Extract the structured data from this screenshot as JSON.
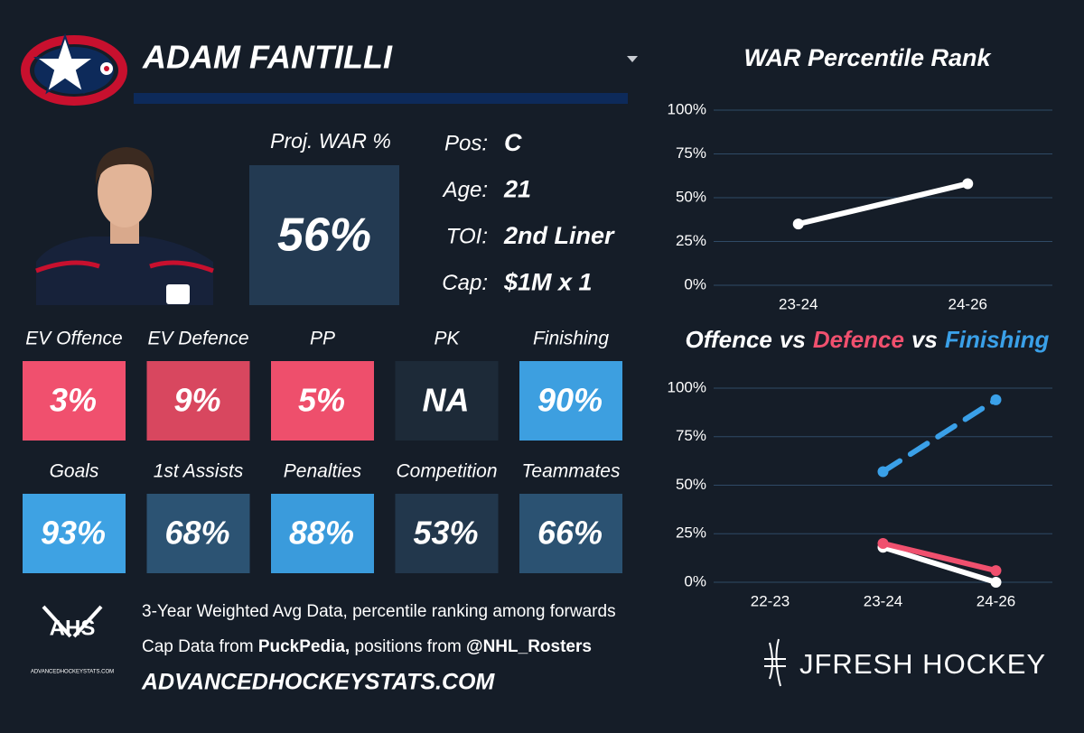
{
  "header": {
    "player": "ADAM FANTILLI"
  },
  "card": {
    "proj_war_label": "Proj. WAR %",
    "proj_war": "56%",
    "proj_war_color": "#233a52",
    "info": [
      {
        "label": "Pos:",
        "value": "C"
      },
      {
        "label": "Age:",
        "value": "21"
      },
      {
        "label": "TOI:",
        "value": "2nd Liner"
      },
      {
        "label": "Cap:",
        "value": "$1M x 1"
      }
    ],
    "tiles": [
      {
        "label": "EV Offence",
        "value": "3%",
        "color": "#f0506e"
      },
      {
        "label": "EV Defence",
        "value": "9%",
        "color": "#d8475f"
      },
      {
        "label": "PP",
        "value": "5%",
        "color": "#ee4f6c"
      },
      {
        "label": "PK",
        "value": "NA",
        "color": "#1d2a38"
      },
      {
        "label": "Finishing",
        "value": "90%",
        "color": "#3d9fe0"
      },
      {
        "label": "Goals",
        "value": "93%",
        "color": "#3ea2e3"
      },
      {
        "label": "1st Assists",
        "value": "68%",
        "color": "#2c5373"
      },
      {
        "label": "Penalties",
        "value": "88%",
        "color": "#3a9bdc"
      },
      {
        "label": "Competition",
        "value": "53%",
        "color": "#22374c"
      },
      {
        "label": "Teammates",
        "value": "66%",
        "color": "#2b5272"
      }
    ]
  },
  "footer": {
    "logo": "AHS",
    "logo_sub": "ADVANCEDHOCKEYSTATS.COM",
    "line1": "3-Year Weighted Avg Data, percentile ranking among forwards",
    "line2": [
      {
        "text": "Cap Data from ",
        "bold": false
      },
      {
        "text": "PuckPedia,",
        "bold": true
      },
      {
        "text": " positions from ",
        "bold": false
      },
      {
        "text": "@NHL_Rosters",
        "bold": true
      }
    ],
    "url": "ADVANCEDHOCKEYSTATS.COM",
    "brand": "JFRESH HOCKEY"
  },
  "chart_data": [
    {
      "type": "line",
      "title": "WAR Percentile Rank",
      "categories": [
        "23-24",
        "24-26"
      ],
      "series": [
        {
          "color": "#ffffff",
          "values": [
            35,
            58
          ],
          "dash": false
        }
      ],
      "ylim": [
        0,
        100
      ],
      "yticks": [
        {
          "value": 0,
          "label": "0%"
        },
        {
          "value": 25,
          "label": "25%"
        },
        {
          "value": 50,
          "label": "50%"
        },
        {
          "value": 75,
          "label": "75%"
        },
        {
          "value": 100,
          "label": "100%"
        }
      ],
      "grid": true
    },
    {
      "type": "line",
      "title_joiner": "vs",
      "categories": [
        "22-23",
        "23-24",
        "24-26"
      ],
      "series": [
        {
          "name": "Offence",
          "color": "#ffffff",
          "values": [
            null,
            18,
            0
          ],
          "dash": false
        },
        {
          "name": "Defence",
          "color": "#f0506e",
          "values": [
            null,
            20,
            6
          ],
          "dash": false
        },
        {
          "name": "Finishing",
          "color": "#3aa0e8",
          "values": [
            null,
            57,
            94
          ],
          "dash": true
        }
      ],
      "ylim": [
        0,
        100
      ],
      "yticks": [
        {
          "value": 0,
          "label": "0%"
        },
        {
          "value": 25,
          "label": "25%"
        },
        {
          "value": 50,
          "label": "50%"
        },
        {
          "value": 75,
          "label": "75%"
        },
        {
          "value": 100,
          "label": "100%"
        }
      ],
      "grid": true
    }
  ]
}
